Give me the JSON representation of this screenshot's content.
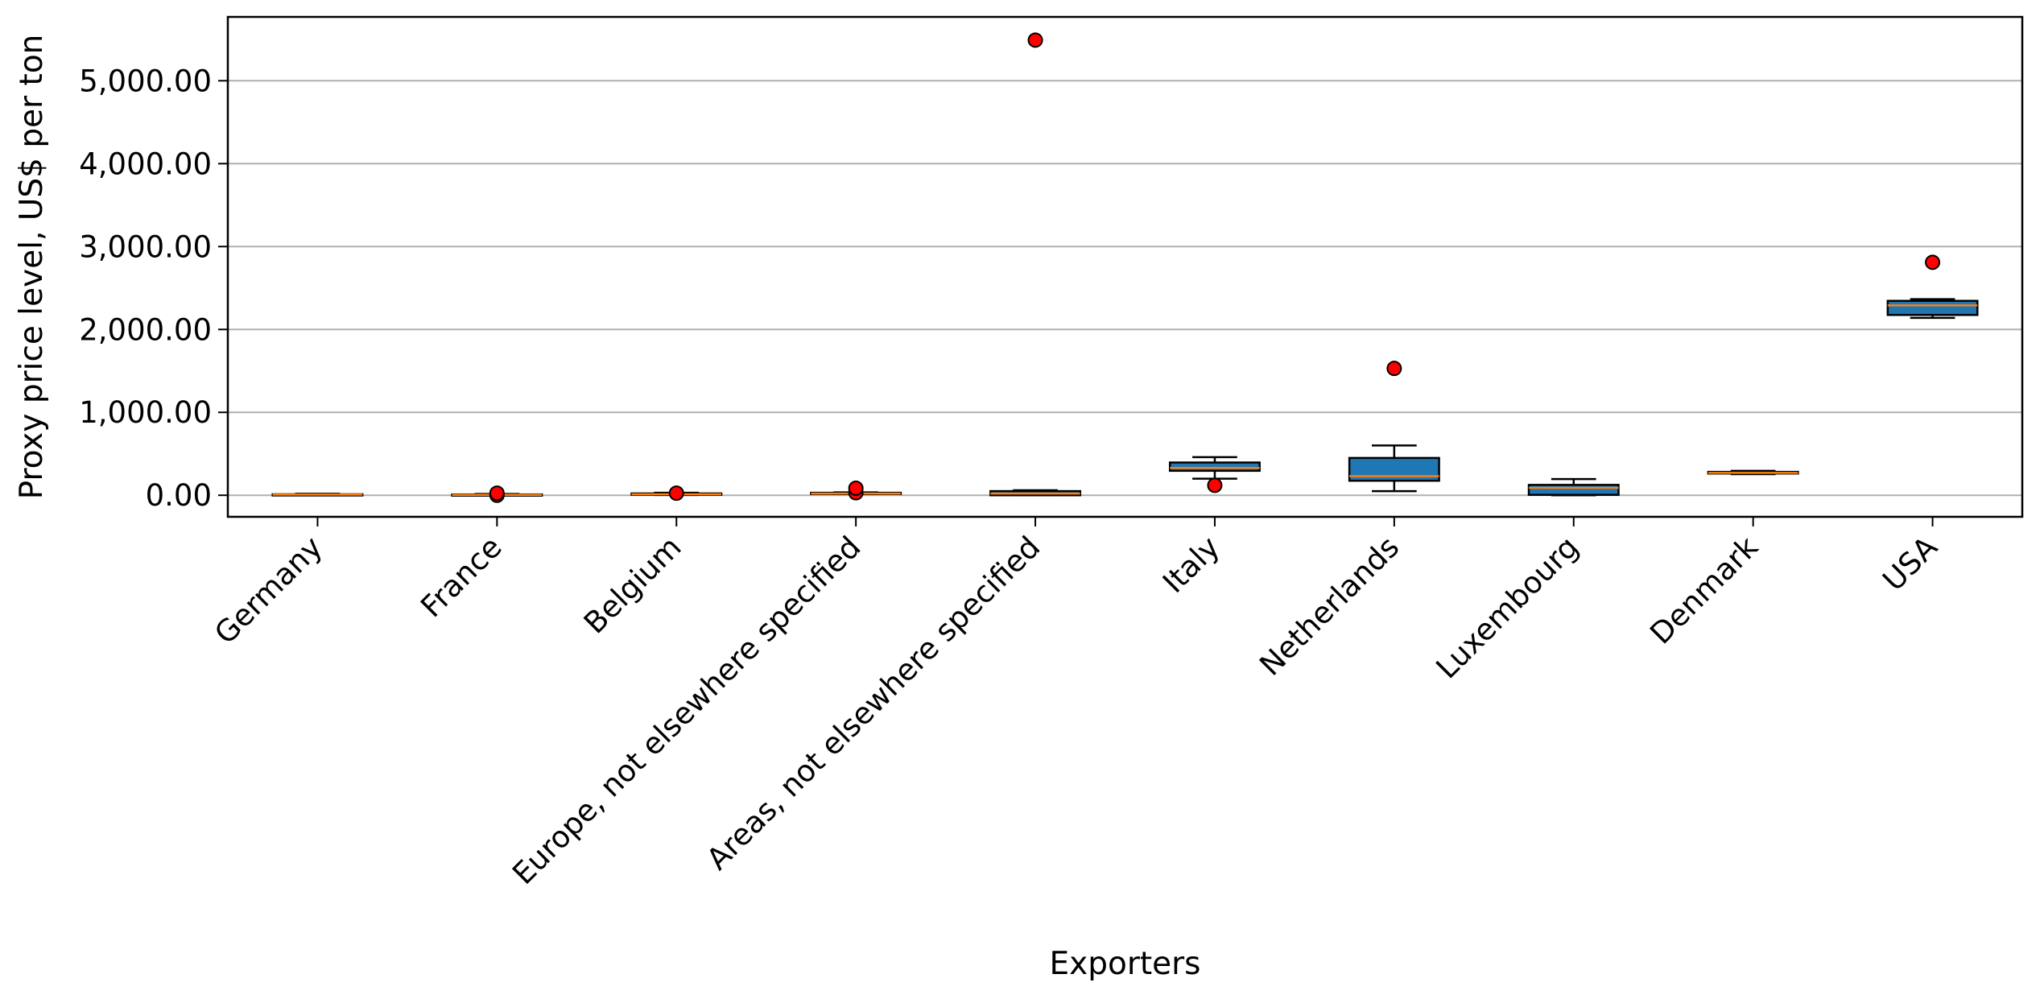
{
  "chart_data": {
    "type": "box",
    "xlabel": "Exporters",
    "ylabel": "Proxy price level, US$ per ton",
    "ylim": [
      -260,
      5770
    ],
    "yticks": [
      0,
      1000,
      2000,
      3000,
      4000,
      5000
    ],
    "ytick_labels": [
      "0.00",
      "1,000.00",
      "2,000.00",
      "3,000.00",
      "4,000.00",
      "5,000.00"
    ],
    "grid": "y",
    "box_color": "#1f77b4",
    "median_color": "#ff7f0e",
    "outlier_color": "#ff0000",
    "categories": [
      "Germany",
      "France",
      "Belgium",
      "Europe, not elsewhere specified",
      "Areas, not elsewhere specified",
      "Italy",
      "Netherlands",
      "Luxembourg",
      "Denmark",
      "USA"
    ],
    "boxes": [
      {
        "whislo": 5,
        "q1": 5,
        "med": 8,
        "q3": 12,
        "whishi": 18,
        "fliers": []
      },
      {
        "whislo": 0,
        "q1": 0,
        "med": 5,
        "q3": 10,
        "whishi": 15,
        "fliers": [
          0,
          25
        ]
      },
      {
        "whislo": 3,
        "q1": 5,
        "med": 12,
        "q3": 22,
        "whishi": 30,
        "fliers": [
          25
        ]
      },
      {
        "whislo": 15,
        "q1": 15,
        "med": 20,
        "q3": 30,
        "whishi": 35,
        "fliers": [
          30,
          85
        ]
      },
      {
        "whislo": 0,
        "q1": 0,
        "med": 20,
        "q3": 50,
        "whishi": 60,
        "fliers": [
          5490
        ]
      },
      {
        "whislo": 200,
        "q1": 295,
        "med": 330,
        "q3": 395,
        "whishi": 460,
        "fliers": [
          120
        ]
      },
      {
        "whislo": 50,
        "q1": 175,
        "med": 230,
        "q3": 450,
        "whishi": 600,
        "fliers": [
          1530
        ]
      },
      {
        "whislo": 0,
        "q1": 5,
        "med": 90,
        "q3": 125,
        "whishi": 195,
        "fliers": []
      },
      {
        "whislo": 255,
        "q1": 262,
        "med": 270,
        "q3": 282,
        "whishi": 295,
        "fliers": []
      },
      {
        "whislo": 2140,
        "q1": 2175,
        "med": 2290,
        "q3": 2345,
        "whishi": 2365,
        "fliers": [
          2810
        ]
      }
    ]
  }
}
